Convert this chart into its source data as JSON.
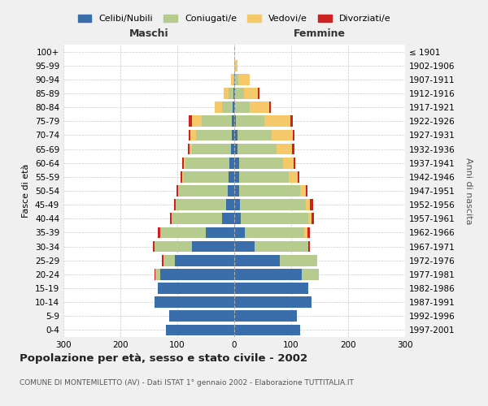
{
  "age_groups": [
    "0-4",
    "5-9",
    "10-14",
    "15-19",
    "20-24",
    "25-29",
    "30-34",
    "35-39",
    "40-44",
    "45-49",
    "50-54",
    "55-59",
    "60-64",
    "65-69",
    "70-74",
    "75-79",
    "80-84",
    "85-89",
    "90-94",
    "95-99",
    "100+"
  ],
  "birth_years": [
    "1997-2001",
    "1992-1996",
    "1987-1991",
    "1982-1986",
    "1977-1981",
    "1972-1976",
    "1967-1971",
    "1962-1966",
    "1957-1961",
    "1952-1956",
    "1947-1951",
    "1942-1946",
    "1937-1941",
    "1932-1936",
    "1927-1931",
    "1922-1926",
    "1917-1921",
    "1912-1916",
    "1907-1911",
    "1902-1906",
    "≤ 1901"
  ],
  "maschi": {
    "celibi": [
      120,
      115,
      140,
      135,
      130,
      105,
      75,
      50,
      22,
      15,
      12,
      10,
      8,
      6,
      5,
      5,
      3,
      2,
      0,
      0,
      0
    ],
    "coniugati": [
      0,
      0,
      0,
      0,
      8,
      20,
      65,
      80,
      88,
      88,
      85,
      80,
      78,
      68,
      62,
      52,
      18,
      8,
      2,
      0,
      0
    ],
    "vedovi": [
      0,
      0,
      0,
      0,
      0,
      0,
      0,
      0,
      0,
      0,
      2,
      2,
      3,
      5,
      10,
      18,
      14,
      8,
      4,
      0,
      0
    ],
    "divorziati": [
      0,
      0,
      0,
      0,
      2,
      2,
      3,
      5,
      3,
      2,
      2,
      3,
      3,
      3,
      3,
      5,
      0,
      0,
      0,
      0,
      0
    ]
  },
  "femmine": {
    "nubili": [
      115,
      110,
      135,
      130,
      118,
      80,
      35,
      18,
      12,
      10,
      8,
      8,
      8,
      6,
      5,
      3,
      2,
      2,
      2,
      0,
      0
    ],
    "coniugate": [
      0,
      0,
      0,
      0,
      30,
      65,
      95,
      105,
      118,
      115,
      108,
      88,
      78,
      68,
      60,
      50,
      25,
      15,
      5,
      0,
      0
    ],
    "vedove": [
      0,
      0,
      0,
      0,
      0,
      0,
      0,
      5,
      5,
      8,
      10,
      15,
      18,
      28,
      38,
      45,
      35,
      25,
      20,
      5,
      0
    ],
    "divorziate": [
      0,
      0,
      0,
      0,
      0,
      0,
      3,
      5,
      5,
      5,
      3,
      3,
      3,
      3,
      3,
      5,
      2,
      2,
      0,
      0,
      0
    ]
  },
  "colors": {
    "celibi": "#3a6eab",
    "coniugati": "#b5cc8e",
    "vedovi": "#f5c96a",
    "divorziati": "#cc2222"
  },
  "xlim": 300,
  "title": "Popolazione per età, sesso e stato civile - 2002",
  "subtitle": "COMUNE DI MONTEMILETTO (AV) - Dati ISTAT 1° gennaio 2002 - Elaborazione TUTTITALIA.IT",
  "ylabel_left": "Fasce di età",
  "ylabel_right": "Anni di nascita",
  "label_maschi": "Maschi",
  "label_femmine": "Femmine",
  "legend_labels": [
    "Celibi/Nubili",
    "Coniugati/e",
    "Vedovi/e",
    "Divorziati/e"
  ],
  "bg_color": "#f0f0f0",
  "plot_bg_color": "#ffffff",
  "grid_color": "#cccccc"
}
